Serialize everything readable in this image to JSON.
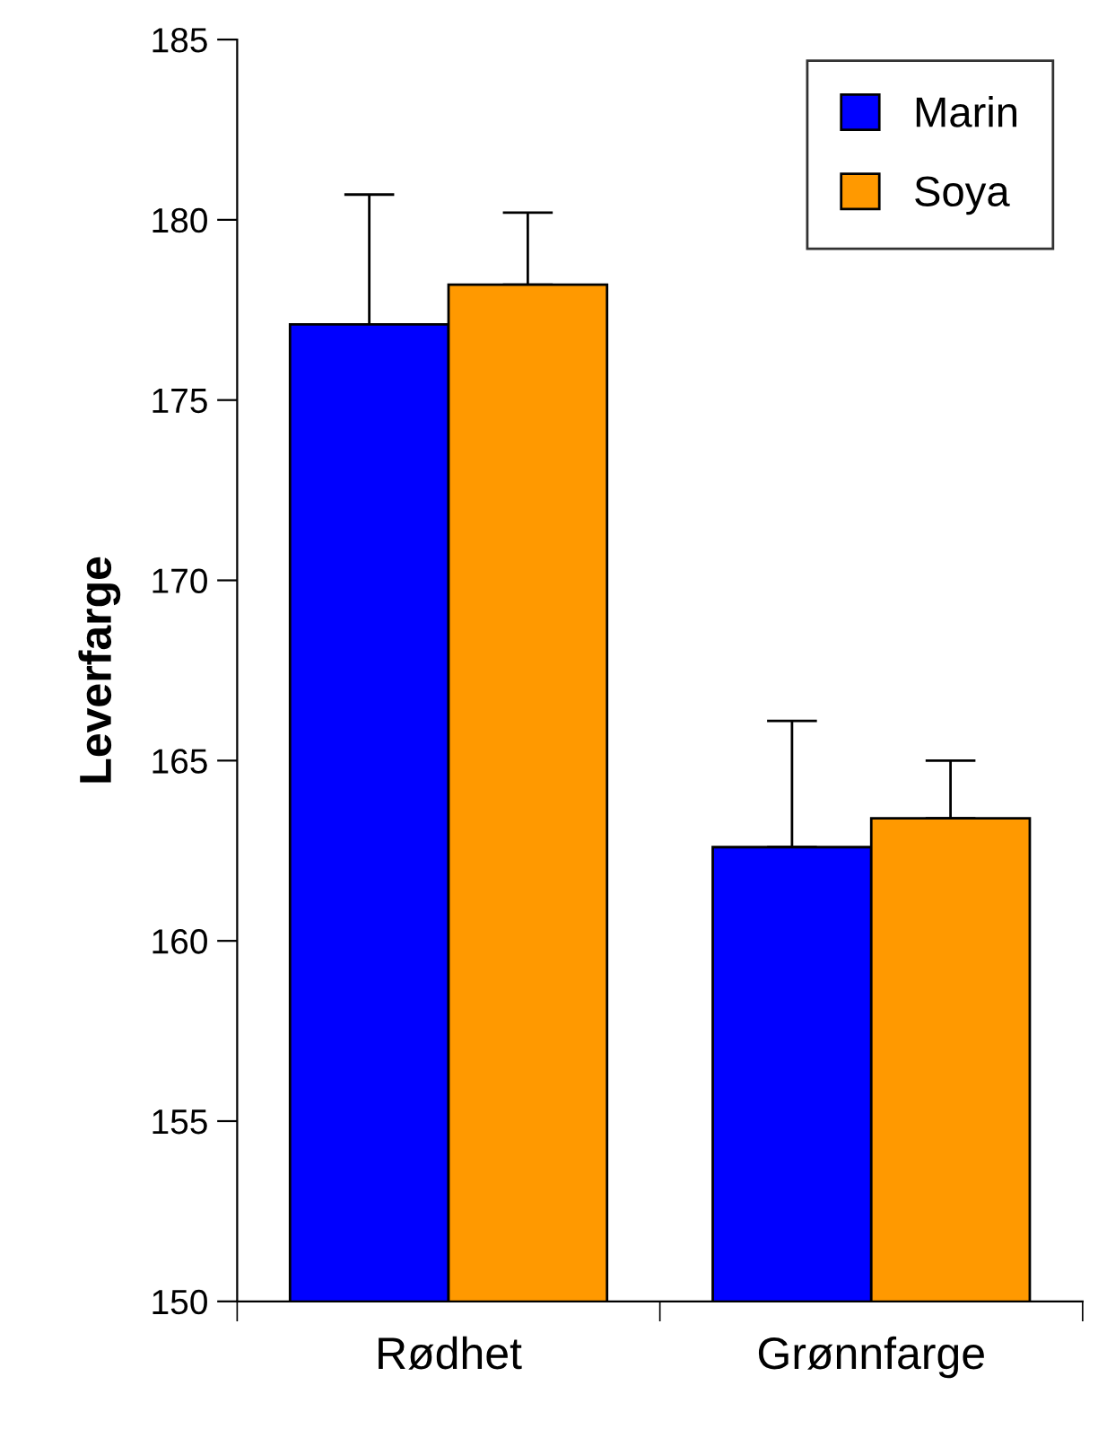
{
  "chart_data": {
    "type": "bar",
    "ylabel": "Leverfarge",
    "categories": [
      "Rødhet",
      "Grønnfarge"
    ],
    "series": [
      {
        "name": "Marin",
        "color": "#0000ff",
        "values": [
          177.1,
          162.6
        ],
        "errors": [
          [
            177.1,
            180.7
          ],
          [
            162.6,
            166.1
          ]
        ]
      },
      {
        "name": "Soya",
        "color": "#ff9900",
        "values": [
          178.2,
          163.4
        ],
        "errors": [
          [
            178.2,
            180.2
          ],
          [
            163.4,
            165.0
          ]
        ]
      }
    ],
    "ylim": [
      150,
      185
    ],
    "yticks": [
      150,
      155,
      160,
      165,
      170,
      175,
      180,
      185
    ],
    "grid": false,
    "legend": "top right"
  }
}
